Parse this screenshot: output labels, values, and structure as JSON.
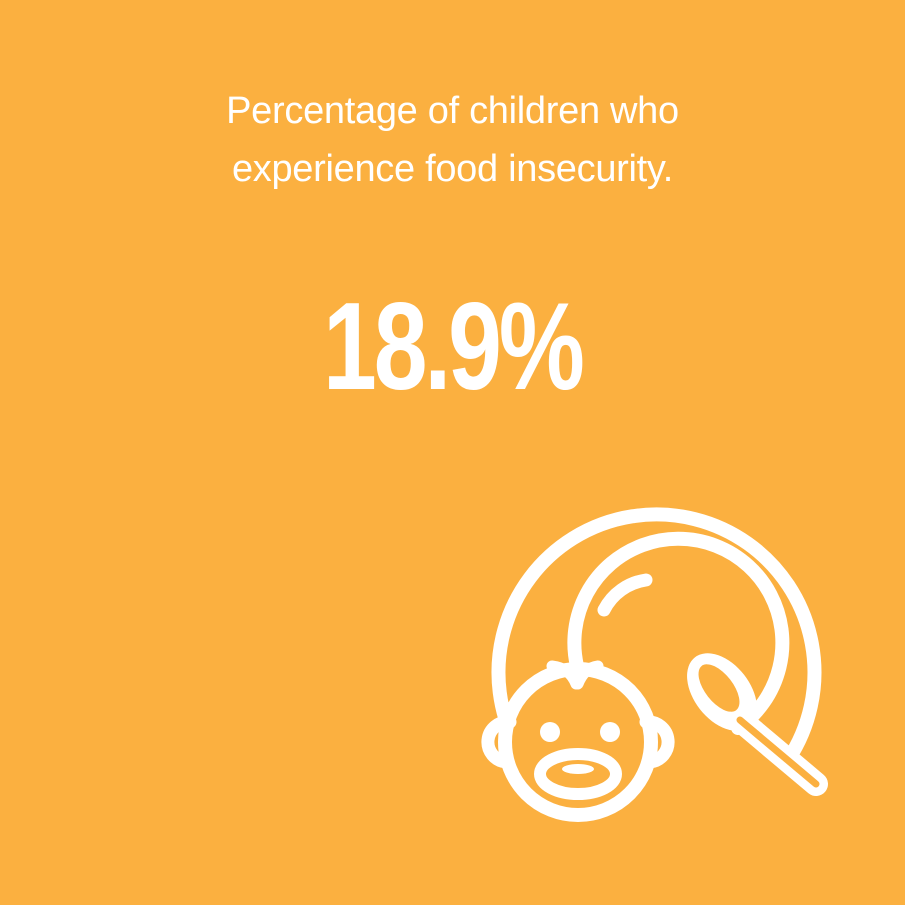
{
  "colors": {
    "background": "#fbb040",
    "foreground": "#ffffff"
  },
  "infographic": {
    "title_line_1": "Percentage of children who",
    "title_line_2": "experience food insecurity.",
    "statistic": "18.9%"
  },
  "icon": {
    "name": "child-food-plate-icon"
  }
}
